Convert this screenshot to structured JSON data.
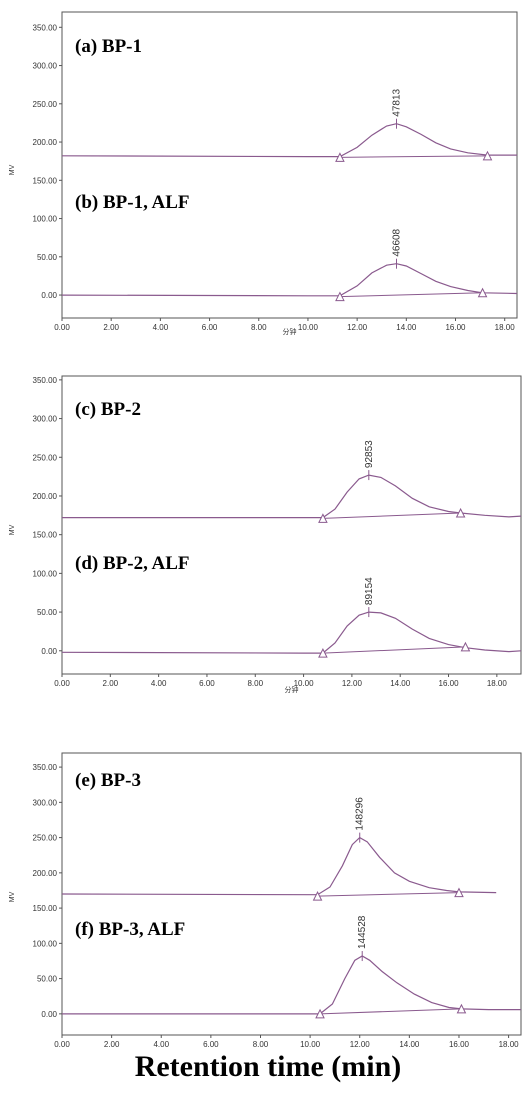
{
  "colors": {
    "trace": "#8a5a8e",
    "axis": "#555555",
    "text": "#000000",
    "ticks": "#333333"
  },
  "figure_xlabel": "Retention time (min)",
  "chart_data": [
    {
      "type": "line",
      "panel": "top",
      "ylabel": "MV",
      "xlabel": "分钟",
      "xlim": [
        0,
        18.5
      ],
      "ylim": [
        -30,
        370
      ],
      "yticks": [
        0,
        50,
        100,
        150,
        200,
        250,
        300,
        350
      ],
      "ytick_labels": [
        "0.00",
        "50.00",
        "100.00",
        "150.00",
        "200.00",
        "250.00",
        "300.00",
        "350.00"
      ],
      "xticks": [
        0,
        2,
        4,
        6,
        8,
        10,
        12,
        14,
        16,
        18
      ],
      "xtick_labels": [
        "0.00",
        "2.00",
        "4.00",
        "6.00",
        "8.00",
        "10.00",
        "12.00",
        "14.00",
        "16.00",
        "18.00"
      ],
      "grid": false,
      "series": [
        {
          "name": "(a) BP-1",
          "peak_label": "47813",
          "baseline_start": [
            11.3,
            180
          ],
          "baseline_end": [
            17.3,
            182
          ],
          "points": [
            [
              0,
              182
            ],
            [
              10,
              181
            ],
            [
              11.3,
              181
            ],
            [
              12.0,
              193
            ],
            [
              12.6,
              209
            ],
            [
              13.2,
              221
            ],
            [
              13.6,
              224
            ],
            [
              14.0,
              220
            ],
            [
              14.6,
              210
            ],
            [
              15.2,
              199
            ],
            [
              15.8,
              191
            ],
            [
              16.5,
              186
            ],
            [
              17.3,
              183
            ],
            [
              18.5,
              183
            ]
          ]
        },
        {
          "name": "(b) BP-1, ALF",
          "peak_label": "46608",
          "baseline_start": [
            11.3,
            -2
          ],
          "baseline_end": [
            17.1,
            3
          ],
          "points": [
            [
              0,
              0
            ],
            [
              10,
              -1
            ],
            [
              11.3,
              -1
            ],
            [
              12.0,
              12
            ],
            [
              12.6,
              29
            ],
            [
              13.2,
              39
            ],
            [
              13.6,
              41
            ],
            [
              14.0,
              38
            ],
            [
              14.6,
              28
            ],
            [
              15.2,
              18
            ],
            [
              15.8,
              11
            ],
            [
              16.5,
              6
            ],
            [
              17.1,
              3
            ],
            [
              18.5,
              2
            ]
          ]
        }
      ]
    },
    {
      "type": "line",
      "panel": "middle",
      "ylabel": "MV",
      "xlabel": "分钟",
      "xlim": [
        0,
        19
      ],
      "ylim": [
        -30,
        355
      ],
      "yticks": [
        0,
        50,
        100,
        150,
        200,
        250,
        300,
        350
      ],
      "ytick_labels": [
        "0.00",
        "50.00",
        "100.00",
        "150.00",
        "200.00",
        "250.00",
        "300.00",
        "350.00"
      ],
      "xticks": [
        0,
        2,
        4,
        6,
        8,
        10,
        12,
        14,
        16,
        18
      ],
      "xtick_labels": [
        "0.00",
        "2.00",
        "4.00",
        "6.00",
        "8.00",
        "10.00",
        "12.00",
        "14.00",
        "16.00",
        "18.00"
      ],
      "grid": false,
      "series": [
        {
          "name": "(c) BP-2",
          "peak_label": "92853",
          "baseline_start": [
            10.8,
            171
          ],
          "baseline_end": [
            16.5,
            178
          ],
          "points": [
            [
              0,
              172
            ],
            [
              10,
              172
            ],
            [
              10.8,
              172
            ],
            [
              11.3,
              183
            ],
            [
              11.8,
              205
            ],
            [
              12.3,
              222
            ],
            [
              12.7,
              227
            ],
            [
              13.2,
              224
            ],
            [
              13.8,
              213
            ],
            [
              14.5,
              197
            ],
            [
              15.2,
              186
            ],
            [
              16.0,
              180
            ],
            [
              16.5,
              178
            ],
            [
              17.5,
              175
            ],
            [
              18.5,
              173
            ],
            [
              19,
              174
            ]
          ]
        },
        {
          "name": "(d) BP-2, ALF",
          "peak_label": "89154",
          "baseline_start": [
            10.8,
            -3
          ],
          "baseline_end": [
            16.7,
            5
          ],
          "points": [
            [
              0,
              -2
            ],
            [
              10,
              -3
            ],
            [
              10.8,
              -3
            ],
            [
              11.3,
              10
            ],
            [
              11.8,
              32
            ],
            [
              12.3,
              46
            ],
            [
              12.7,
              50
            ],
            [
              13.2,
              49
            ],
            [
              13.8,
              42
            ],
            [
              14.5,
              28
            ],
            [
              15.2,
              16
            ],
            [
              16.0,
              8
            ],
            [
              16.7,
              4
            ],
            [
              17.5,
              1
            ],
            [
              18.5,
              -1
            ],
            [
              19,
              0
            ]
          ]
        }
      ]
    },
    {
      "type": "line",
      "panel": "bottom",
      "ylabel": "MV",
      "xlabel": "",
      "xlim": [
        0,
        18.5
      ],
      "ylim": [
        -30,
        370
      ],
      "yticks": [
        0,
        50,
        100,
        150,
        200,
        250,
        300,
        350
      ],
      "ytick_labels": [
        "0.00",
        "50.00",
        "100.00",
        "150.00",
        "200.00",
        "250.00",
        "300.00",
        "350.00"
      ],
      "xticks": [
        0,
        2,
        4,
        6,
        8,
        10,
        12,
        14,
        16,
        18
      ],
      "xtick_labels": [
        "0.00",
        "2.00",
        "4.00",
        "6.00",
        "8.00",
        "10.00",
        "12.00",
        "14.00",
        "16.00",
        "18.00"
      ],
      "grid": false,
      "series": [
        {
          "name": "(e) BP-3",
          "peak_label": "148296",
          "baseline_start": [
            10.3,
            167
          ],
          "baseline_end": [
            16.0,
            172
          ],
          "points": [
            [
              0,
              170
            ],
            [
              10,
              169
            ],
            [
              10.3,
              169
            ],
            [
              10.8,
              180
            ],
            [
              11.3,
              210
            ],
            [
              11.7,
              240
            ],
            [
              12.0,
              250
            ],
            [
              12.3,
              244
            ],
            [
              12.8,
              222
            ],
            [
              13.4,
              200
            ],
            [
              14.0,
              188
            ],
            [
              14.8,
              179
            ],
            [
              15.5,
              175
            ],
            [
              16.0,
              173
            ],
            [
              17.5,
              172
            ]
          ]
        },
        {
          "name": "(f) BP-3, ALF",
          "peak_label": "144528",
          "baseline_start": [
            10.4,
            0
          ],
          "baseline_end": [
            16.1,
            7
          ],
          "points": [
            [
              0,
              0
            ],
            [
              10,
              0
            ],
            [
              10.4,
              0
            ],
            [
              10.9,
              14
            ],
            [
              11.4,
              50
            ],
            [
              11.8,
              76
            ],
            [
              12.1,
              82
            ],
            [
              12.4,
              76
            ],
            [
              12.9,
              60
            ],
            [
              13.5,
              44
            ],
            [
              14.2,
              28
            ],
            [
              14.9,
              16
            ],
            [
              15.6,
              9
            ],
            [
              16.1,
              7
            ],
            [
              17.2,
              6
            ],
            [
              18.5,
              6
            ]
          ]
        }
      ]
    }
  ]
}
